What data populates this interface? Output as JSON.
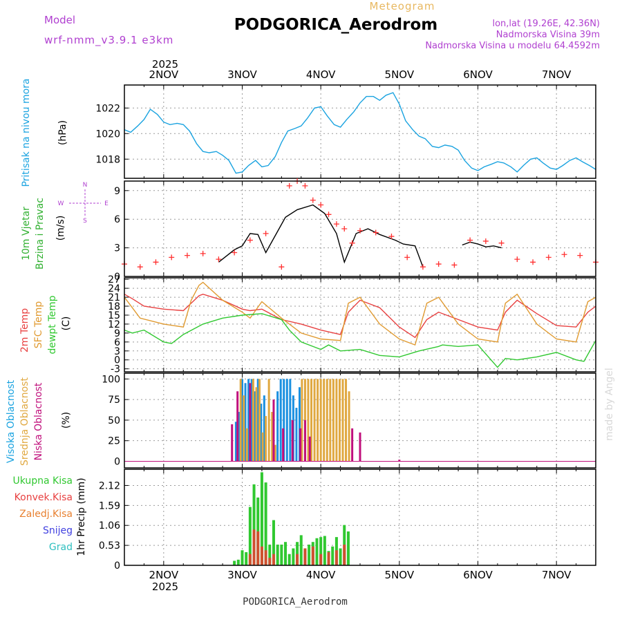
{
  "header": {
    "model_label": "Model",
    "model_name": "wrf-nmm_v3.9.1 e3km",
    "meteogram_label": "Meteogram",
    "station": "PODGORICA_Aerodrom",
    "lonlat": "lon,lat (19.26E, 42.36N)",
    "elevation": "Nadmorska Visina 39m",
    "model_elevation": "Nadmorska Visina u modelu 64.4592m",
    "footer_station": "PODGORICA_Aerodrom",
    "watermark": "made by Angel",
    "colors": {
      "purple": "#b040d0",
      "gold": "#e8b860",
      "black": "#000000"
    }
  },
  "time_axis": {
    "year": "2025",
    "day_labels": [
      "2NOV",
      "3NOV",
      "4NOV",
      "5NOV",
      "6NOV",
      "7NOV"
    ],
    "day_positions": [
      0.5,
      1.5,
      2.5,
      3.5,
      4.5,
      5.5
    ],
    "range_days": [
      0,
      6.0
    ]
  },
  "chart_data": [
    {
      "type": "line",
      "panel": "pressure",
      "title": "Pritisak na nivou mora",
      "ylabel": "(hPa)",
      "ylim": [
        1016.5,
        1023.8
      ],
      "yticks": [
        1018,
        1020,
        1022
      ],
      "series": [
        {
          "name": "MSLP",
          "color": "#1aa3e0",
          "x": [
            0.0,
            0.08,
            0.17,
            0.25,
            0.33,
            0.42,
            0.5,
            0.58,
            0.67,
            0.75,
            0.83,
            0.92,
            1.0,
            1.08,
            1.17,
            1.25,
            1.33,
            1.42,
            1.5,
            1.58,
            1.67,
            1.75,
            1.83,
            1.92,
            2.0,
            2.08,
            2.17,
            2.25,
            2.33,
            2.42,
            2.5,
            2.58,
            2.67,
            2.75,
            2.83,
            2.92,
            3.0,
            3.08,
            3.17,
            3.25,
            3.33,
            3.42,
            3.5,
            3.58,
            3.67,
            3.75,
            3.83,
            3.92,
            4.0,
            4.08,
            4.17,
            4.25,
            4.33,
            4.42,
            4.5,
            4.58,
            4.67,
            4.75,
            4.83,
            4.92,
            5.0,
            5.08,
            5.17,
            5.25,
            5.33,
            5.42,
            5.5,
            5.58,
            5.67,
            5.75,
            5.83,
            5.92,
            6.0
          ],
          "values": [
            1020.3,
            1020.1,
            1020.6,
            1021.1,
            1021.9,
            1021.5,
            1020.9,
            1020.7,
            1020.8,
            1020.7,
            1020.2,
            1019.2,
            1018.6,
            1018.5,
            1018.6,
            1018.3,
            1017.9,
            1016.9,
            1017.0,
            1017.5,
            1017.9,
            1017.4,
            1017.5,
            1018.2,
            1019.3,
            1020.2,
            1020.4,
            1020.6,
            1021.2,
            1022.0,
            1022.1,
            1021.4,
            1020.7,
            1020.5,
            1021.1,
            1021.7,
            1022.4,
            1022.9,
            1022.9,
            1022.6,
            1023.0,
            1023.2,
            1022.3,
            1021.0,
            1020.3,
            1019.8,
            1019.6,
            1019.0,
            1018.9,
            1019.1,
            1019.0,
            1018.7,
            1017.9,
            1017.3,
            1017.1,
            1017.4,
            1017.6,
            1017.8,
            1017.7,
            1017.4,
            1017.0,
            1017.5,
            1018.0,
            1018.1,
            1017.7,
            1017.3,
            1017.2,
            1017.5,
            1017.9,
            1018.1,
            1017.8,
            1017.5,
            1017.2
          ]
        }
      ]
    },
    {
      "type": "line",
      "panel": "wind",
      "title1": "10m Vjetar",
      "title2": "Brzina i Pravac",
      "ylabel": "(m/s)",
      "compass": {
        "n": "N",
        "s": "S",
        "w": "W",
        "e": "E"
      },
      "ylim": [
        0,
        10
      ],
      "yticks": [
        0,
        3,
        6,
        9
      ],
      "legend_marks": "gust '+' red, mean speed black",
      "series": [
        {
          "name": "speed",
          "color": "#000000",
          "x": [
            1.2,
            1.4,
            1.5,
            1.6,
            1.7,
            1.8,
            2.05,
            2.2,
            2.4,
            2.55,
            2.7,
            2.8,
            2.95,
            3.1,
            3.25,
            3.45,
            3.55,
            3.7,
            3.8
          ],
          "values": [
            1.5,
            2.8,
            3.2,
            4.5,
            4.4,
            2.5,
            6.2,
            7.0,
            7.5,
            6.6,
            4.5,
            1.5,
            4.5,
            5.0,
            4.4,
            3.8,
            3.4,
            3.2,
            1.0
          ]
        },
        {
          "name": "speed2",
          "color": "#000000",
          "x": [
            4.3,
            4.4,
            4.5,
            4.6,
            4.7,
            4.8
          ],
          "values": [
            3.3,
            3.6,
            3.4,
            3.1,
            3.2,
            3.0
          ]
        },
        {
          "name": "gust",
          "color": "#ff3030",
          "x": [
            0.0,
            0.2,
            0.4,
            0.6,
            0.8,
            1.0,
            1.2,
            1.4,
            1.6,
            1.8,
            2.0,
            2.1,
            2.2,
            2.3,
            2.4,
            2.5,
            2.6,
            2.7,
            2.8,
            2.9,
            3.0,
            3.2,
            3.4,
            3.6,
            3.8,
            4.0,
            4.2,
            4.4,
            4.6,
            4.8,
            5.0,
            5.2,
            5.4,
            5.6,
            5.8,
            6.0
          ],
          "values": [
            1.3,
            1.0,
            1.5,
            2.0,
            2.2,
            2.4,
            1.8,
            2.5,
            3.8,
            4.5,
            1.0,
            9.5,
            10.0,
            9.5,
            8.0,
            7.5,
            6.5,
            5.5,
            5.0,
            3.5,
            4.8,
            4.6,
            4.2,
            2.0,
            1.0,
            1.3,
            1.2,
            3.8,
            3.7,
            3.5,
            1.8,
            1.5,
            2.0,
            2.3,
            2.2,
            1.5
          ]
        }
      ]
    },
    {
      "type": "line",
      "panel": "temperature",
      "title1": "2m Temp",
      "title2": "SFC Temp",
      "title3": "dewpt Temp",
      "ylabel": "(C)",
      "ylim": [
        -4,
        27.5
      ],
      "yticks": [
        -3,
        0,
        3,
        6,
        9,
        12,
        15,
        18,
        21,
        24,
        27
      ],
      "series": [
        {
          "name": "2m Temp",
          "color": "#e84040",
          "x": [
            0.0,
            0.1,
            0.25,
            0.5,
            0.75,
            0.85,
            0.95,
            1.0,
            1.25,
            1.5,
            1.6,
            1.75,
            2.0,
            2.25,
            2.5,
            2.75,
            2.85,
            3.0,
            3.25,
            3.5,
            3.7,
            3.85,
            4.0,
            4.25,
            4.5,
            4.75,
            4.85,
            5.0,
            5.25,
            5.5,
            5.75,
            5.9,
            6.0
          ],
          "values": [
            22.0,
            20.5,
            18.0,
            17.0,
            16.5,
            19.0,
            21.5,
            22.0,
            20.0,
            17.0,
            16.5,
            17.0,
            13.5,
            12.0,
            10.0,
            8.5,
            16.0,
            20.0,
            17.5,
            11.0,
            7.5,
            13.5,
            16.0,
            13.5,
            11.0,
            10.0,
            16.0,
            20.0,
            15.5,
            11.5,
            11.0,
            16.0,
            18.0
          ]
        },
        {
          "name": "SFC Temp",
          "color": "#e09a30",
          "x": [
            0.0,
            0.1,
            0.2,
            0.5,
            0.75,
            0.85,
            0.95,
            1.0,
            1.25,
            1.5,
            1.6,
            1.75,
            2.0,
            2.25,
            2.5,
            2.75,
            2.85,
            3.0,
            3.25,
            3.5,
            3.7,
            3.85,
            4.0,
            4.25,
            4.5,
            4.75,
            4.85,
            5.0,
            5.25,
            5.5,
            5.75,
            5.9,
            6.0
          ],
          "values": [
            21.0,
            17.5,
            14.0,
            12.0,
            11.0,
            20.0,
            25.0,
            26.0,
            20.0,
            16.0,
            14.0,
            19.5,
            14.0,
            9.0,
            7.0,
            6.5,
            19.0,
            21.0,
            12.0,
            7.0,
            5.0,
            19.0,
            21.0,
            12.0,
            7.0,
            6.0,
            19.0,
            22.0,
            12.0,
            7.0,
            6.0,
            19.5,
            21.0
          ]
        },
        {
          "name": "dewpt Temp",
          "color": "#30c830",
          "x": [
            0.0,
            0.1,
            0.25,
            0.5,
            0.6,
            0.75,
            1.0,
            1.25,
            1.5,
            1.75,
            2.0,
            2.1,
            2.25,
            2.5,
            2.6,
            2.75,
            3.0,
            3.25,
            3.5,
            3.75,
            4.0,
            4.05,
            4.25,
            4.5,
            4.75,
            4.85,
            5.0,
            5.25,
            5.5,
            5.75,
            5.85,
            6.0
          ],
          "values": [
            10.0,
            9.0,
            10.0,
            6.0,
            5.5,
            8.5,
            12.0,
            14.0,
            15.0,
            15.5,
            13.5,
            10.0,
            6.0,
            3.5,
            5.0,
            3.0,
            3.5,
            1.5,
            1.0,
            3.0,
            4.5,
            5.0,
            4.5,
            5.0,
            -2.5,
            0.5,
            0.0,
            1.0,
            2.5,
            0.0,
            -0.5,
            6.5
          ]
        }
      ]
    },
    {
      "type": "bar",
      "panel": "clouds",
      "title1": "Visoka Oblacnost",
      "title2": "Srednja Oblacnost",
      "title3": "Niska Oblacnost",
      "ylabel": "(%)",
      "ylim": [
        -8,
        107
      ],
      "yticks": [
        0,
        25,
        50,
        75,
        100
      ],
      "series": [
        {
          "name": "Visoka",
          "color": "#1a90e0",
          "x": [
            1.42,
            1.46,
            1.5,
            1.54,
            1.58,
            1.62,
            1.66,
            1.7,
            1.74,
            1.78,
            1.95,
            1.99,
            2.03,
            2.07,
            2.11,
            2.15,
            2.19,
            2.23
          ],
          "values": [
            48,
            60,
            100,
            95,
            100,
            100,
            85,
            100,
            70,
            80,
            85,
            100,
            100,
            100,
            100,
            80,
            65,
            90
          ]
        },
        {
          "name": "Srednja",
          "color": "#e0a840",
          "x": [
            1.48,
            1.52,
            1.56,
            1.64,
            1.68,
            1.72,
            1.76,
            1.8,
            1.84,
            1.88,
            1.92,
            2.26,
            2.3,
            2.34,
            2.38,
            2.42,
            2.46,
            2.5,
            2.54,
            2.58,
            2.62,
            2.66,
            2.7,
            2.74,
            2.78,
            2.82,
            2.86
          ],
          "values": [
            100,
            80,
            40,
            100,
            90,
            100,
            35,
            55,
            100,
            60,
            20,
            100,
            100,
            100,
            100,
            100,
            100,
            100,
            100,
            100,
            100,
            100,
            100,
            100,
            100,
            100,
            85
          ]
        },
        {
          "name": "Niska",
          "color": "#c0107c",
          "x": [
            1.37,
            1.44,
            1.6,
            1.9,
            2.02,
            2.14,
            2.24,
            2.3,
            2.36,
            2.9,
            3.0,
            3.5
          ],
          "values": [
            45,
            85,
            95,
            75,
            40,
            50,
            40,
            50,
            30,
            40,
            35,
            2
          ]
        }
      ]
    },
    {
      "type": "bar",
      "panel": "precip",
      "legend": [
        "Ukupna Kisa",
        "Konvek.Kisa",
        "Zaledj.Kisa",
        "Snijeg",
        "Grad"
      ],
      "ylabel": "1hr Precip (mm)",
      "ylim": [
        0,
        2.55
      ],
      "yticks": [
        0,
        0.53,
        1.06,
        1.59,
        2.12
      ],
      "ytick_labels": [
        "0",
        "0.53",
        "1.06",
        "1.59",
        "2.12"
      ],
      "series": [
        {
          "name": "Ukupna Kisa",
          "color": "#30c830",
          "x": [
            1.4,
            1.45,
            1.5,
            1.55,
            1.6,
            1.65,
            1.7,
            1.75,
            1.8,
            1.85,
            1.9,
            1.95,
            2.0,
            2.05,
            2.1,
            2.15,
            2.2,
            2.25,
            2.3,
            2.35,
            2.4,
            2.45,
            2.5,
            2.55,
            2.6,
            2.65,
            2.7,
            2.75,
            2.8,
            2.85
          ],
          "values": [
            0.12,
            0.15,
            0.4,
            0.35,
            1.55,
            2.15,
            1.8,
            2.47,
            2.2,
            0.55,
            1.2,
            0.55,
            0.55,
            0.62,
            0.3,
            0.45,
            0.62,
            0.8,
            0.45,
            0.55,
            0.62,
            0.72,
            0.75,
            0.78,
            0.38,
            0.5,
            0.75,
            0.45,
            1.07,
            0.9
          ]
        },
        {
          "name": "Konvek.Kisa",
          "color": "#d05030",
          "x": [
            1.6,
            1.65,
            1.7,
            1.75,
            1.8,
            1.85,
            1.9,
            2.2,
            2.3,
            2.4,
            2.5,
            2.6,
            2.7,
            2.8
          ],
          "values": [
            0.3,
            0.95,
            0.9,
            0.5,
            0.4,
            0.2,
            0.3,
            0.3,
            0.45,
            0.5,
            0.3,
            0.35,
            0.4,
            0.55
          ]
        }
      ]
    }
  ]
}
